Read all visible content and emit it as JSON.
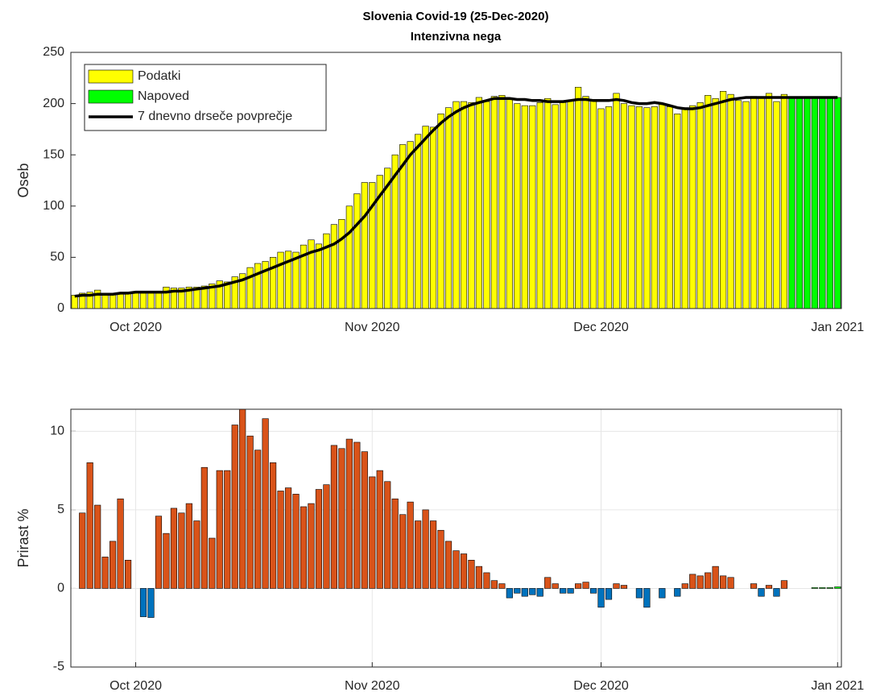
{
  "chart_data": [
    {
      "type": "bar",
      "title": "Slovenia Covid-19 (25-Dec-2020)",
      "subtitle": "Intenzivna nega",
      "y_label": "Oseb",
      "categories": [
        null,
        null,
        null,
        null,
        null,
        null,
        null,
        null,
        "Oct 2020",
        null,
        null,
        null,
        null,
        null,
        null,
        null,
        null,
        null,
        null,
        null,
        null,
        null,
        null,
        null,
        null,
        null,
        null,
        null,
        null,
        null,
        null,
        null,
        null,
        null,
        null,
        null,
        null,
        null,
        null,
        "Nov 2020",
        null,
        null,
        null,
        null,
        null,
        null,
        null,
        null,
        null,
        null,
        null,
        null,
        null,
        null,
        null,
        null,
        null,
        null,
        null,
        null,
        null,
        null,
        null,
        null,
        null,
        null,
        null,
        null,
        null,
        "Dec 2020",
        null,
        null,
        null,
        null,
        null,
        null,
        null,
        null,
        null,
        null,
        null,
        null,
        null,
        null,
        null,
        null,
        null,
        null,
        null,
        null,
        null,
        null,
        null,
        null,
        null,
        null,
        null,
        null,
        null,
        null,
        "Jan 2021"
      ],
      "ylim": [
        0,
        250
      ],
      "yticks": [
        0,
        50,
        100,
        150,
        200,
        250
      ],
      "grid": false,
      "legend": "top-left",
      "series": [
        {
          "name": "Podatki",
          "color": "#ffff00",
          "values": [
            13,
            15,
            16,
            18,
            15,
            15,
            15,
            16,
            16,
            15,
            15,
            15,
            21,
            20,
            20,
            21,
            21,
            22,
            24,
            27,
            26,
            31,
            34,
            40,
            44,
            46,
            50,
            55,
            56,
            55,
            62,
            67,
            63,
            73,
            82,
            87,
            100,
            112,
            123,
            123,
            130,
            137,
            150,
            160,
            163,
            170,
            178,
            177,
            190,
            196,
            202,
            202,
            201,
            206,
            202,
            207,
            208,
            205,
            200,
            198,
            198,
            201,
            205,
            199,
            201,
            203,
            216,
            207,
            204,
            195,
            197,
            210,
            200,
            198,
            197,
            196,
            197,
            200,
            197,
            190,
            196,
            198,
            201,
            208,
            205,
            212,
            209,
            203,
            202,
            207,
            205,
            210,
            202,
            209,
            null,
            null,
            null,
            null,
            null,
            null,
            null
          ]
        },
        {
          "name": "Napoved",
          "color": "#00ff00",
          "values": [
            null,
            null,
            null,
            null,
            null,
            null,
            null,
            null,
            null,
            null,
            null,
            null,
            null,
            null,
            null,
            null,
            null,
            null,
            null,
            null,
            null,
            null,
            null,
            null,
            null,
            null,
            null,
            null,
            null,
            null,
            null,
            null,
            null,
            null,
            null,
            null,
            null,
            null,
            null,
            null,
            null,
            null,
            null,
            null,
            null,
            null,
            null,
            null,
            null,
            null,
            null,
            null,
            null,
            null,
            null,
            null,
            null,
            null,
            null,
            null,
            null,
            null,
            null,
            null,
            null,
            null,
            null,
            null,
            null,
            null,
            null,
            null,
            null,
            null,
            null,
            null,
            null,
            null,
            null,
            null,
            null,
            null,
            null,
            null,
            null,
            null,
            null,
            null,
            null,
            null,
            null,
            null,
            null,
            null,
            206,
            206,
            206,
            206,
            206,
            206,
            206
          ]
        },
        {
          "name": "7 dnevno drseče povprečje",
          "type": "line",
          "color": "#000000",
          "values": [
            12,
            13,
            13,
            14,
            14,
            14,
            15,
            15,
            16,
            16,
            16,
            16,
            16,
            17,
            17,
            18,
            19,
            20,
            21,
            22,
            24,
            26,
            28,
            31,
            34,
            37,
            40,
            43,
            46,
            49,
            52,
            55,
            57,
            60,
            63,
            68,
            74,
            82,
            90,
            100,
            110,
            120,
            130,
            140,
            150,
            158,
            166,
            174,
            181,
            187,
            192,
            196,
            199,
            201,
            203,
            205,
            205,
            205,
            204,
            204,
            203,
            203,
            202,
            202,
            202,
            203,
            204,
            204,
            203,
            203,
            203,
            204,
            203,
            201,
            200,
            200,
            201,
            200,
            198,
            196,
            195,
            195,
            196,
            198,
            200,
            202,
            204,
            205,
            206,
            206,
            206,
            206,
            206,
            206,
            206,
            206,
            206,
            206,
            206,
            206,
            206
          ]
        }
      ]
    },
    {
      "type": "bar",
      "y_label": "Prirast %",
      "categories": [
        null,
        null,
        null,
        null,
        null,
        null,
        null,
        null,
        "Oct 2020",
        null,
        null,
        null,
        null,
        null,
        null,
        null,
        null,
        null,
        null,
        null,
        null,
        null,
        null,
        null,
        null,
        null,
        null,
        null,
        null,
        null,
        null,
        null,
        null,
        null,
        null,
        null,
        null,
        null,
        null,
        "Nov 2020",
        null,
        null,
        null,
        null,
        null,
        null,
        null,
        null,
        null,
        null,
        null,
        null,
        null,
        null,
        null,
        null,
        null,
        null,
        null,
        null,
        null,
        null,
        null,
        null,
        null,
        null,
        null,
        null,
        null,
        "Dec 2020",
        null,
        null,
        null,
        null,
        null,
        null,
        null,
        null,
        null,
        null,
        null,
        null,
        null,
        null,
        null,
        null,
        null,
        null,
        null,
        null,
        null,
        null,
        null,
        null,
        null,
        null,
        null,
        null,
        null,
        null,
        "Jan 2021"
      ],
      "ylim": [
        -5,
        11.4
      ],
      "yticks": [
        -5,
        0,
        5,
        10
      ],
      "grid": true,
      "series": [
        {
          "color": "#d95319",
          "negative_color": "#0072bd",
          "values": [
            null,
            4.8,
            8.0,
            5.3,
            2.0,
            3.0,
            5.7,
            1.8,
            0,
            -1.8,
            -1.85,
            4.6,
            3.5,
            5.1,
            4.8,
            5.4,
            4.3,
            7.7,
            3.2,
            7.5,
            7.5,
            10.4,
            11.4,
            9.7,
            8.8,
            10.8,
            8.0,
            6.2,
            6.4,
            6.0,
            5.2,
            5.4,
            6.3,
            6.6,
            9.1,
            8.9,
            9.5,
            9.3,
            8.7,
            7.1,
            7.5,
            6.8,
            5.7,
            4.7,
            5.5,
            4.3,
            5.0,
            4.3,
            3.7,
            3.0,
            2.4,
            2.2,
            1.8,
            1.4,
            1.0,
            0.5,
            0.3,
            -0.6,
            -0.3,
            -0.5,
            -0.4,
            -0.5,
            0.7,
            0.3,
            -0.3,
            -0.3,
            0.3,
            0.4,
            -0.3,
            -1.2,
            -0.7,
            0.3,
            0.2,
            0,
            -0.6,
            -1.2,
            0,
            -0.6,
            0,
            -0.5,
            0.3,
            0.9,
            0.8,
            1.0,
            1.4,
            0.8,
            0.7,
            0,
            0,
            0.3,
            -0.5,
            0.2,
            -0.5,
            0.5,
            null,
            null,
            null,
            null,
            null,
            null,
            null
          ]
        },
        {
          "color": "#00ff00",
          "values": [
            null,
            null,
            null,
            null,
            null,
            null,
            null,
            null,
            null,
            null,
            null,
            null,
            null,
            null,
            null,
            null,
            null,
            null,
            null,
            null,
            null,
            null,
            null,
            null,
            null,
            null,
            null,
            null,
            null,
            null,
            null,
            null,
            null,
            null,
            null,
            null,
            null,
            null,
            null,
            null,
            null,
            null,
            null,
            null,
            null,
            null,
            null,
            null,
            null,
            null,
            null,
            null,
            null,
            null,
            null,
            null,
            null,
            null,
            null,
            null,
            null,
            null,
            null,
            null,
            null,
            null,
            null,
            null,
            null,
            null,
            null,
            null,
            null,
            null,
            null,
            null,
            null,
            null,
            null,
            null,
            null,
            null,
            null,
            null,
            null,
            null,
            null,
            null,
            null,
            null,
            null,
            null,
            null,
            null,
            0,
            0,
            0,
            0.05,
            0.05,
            0.05,
            0.1
          ]
        }
      ]
    }
  ]
}
